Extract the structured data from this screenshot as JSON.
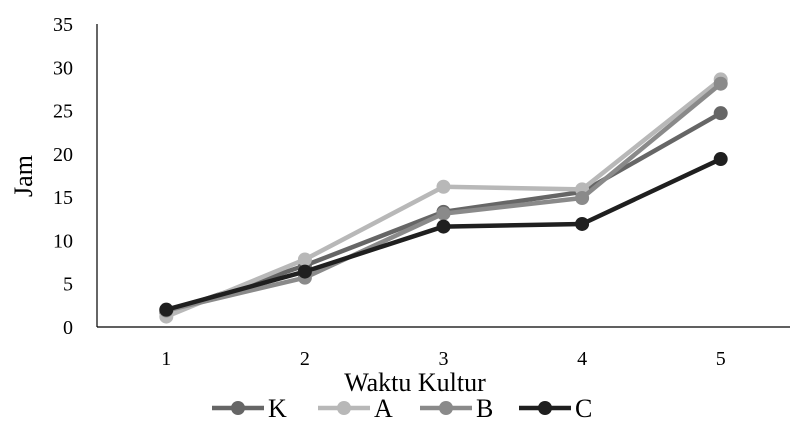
{
  "chart_data": {
    "type": "line",
    "xlabel": "Waktu Kultur",
    "ylabel": "Jam",
    "categories": [
      "1",
      "2",
      "3",
      "4",
      "5"
    ],
    "ylim": [
      0,
      35
    ],
    "yticks": [
      "0",
      "5",
      "10",
      "15",
      "20",
      "25",
      "30",
      "35"
    ],
    "grid": false,
    "legend_position": "bottom",
    "series": [
      {
        "name": "K",
        "color": "#666666",
        "values": [
          1.7,
          7.1,
          13.3,
          15.6,
          24.7
        ]
      },
      {
        "name": "A",
        "color": "#b8b8b8",
        "values": [
          1.2,
          7.8,
          16.2,
          15.9,
          28.6
        ]
      },
      {
        "name": "B",
        "color": "#8a8a8a",
        "values": [
          1.9,
          5.7,
          13.1,
          14.9,
          28.1
        ]
      },
      {
        "name": "C",
        "color": "#1f1f1f",
        "values": [
          2.0,
          6.4,
          11.6,
          11.9,
          19.4
        ]
      }
    ]
  }
}
